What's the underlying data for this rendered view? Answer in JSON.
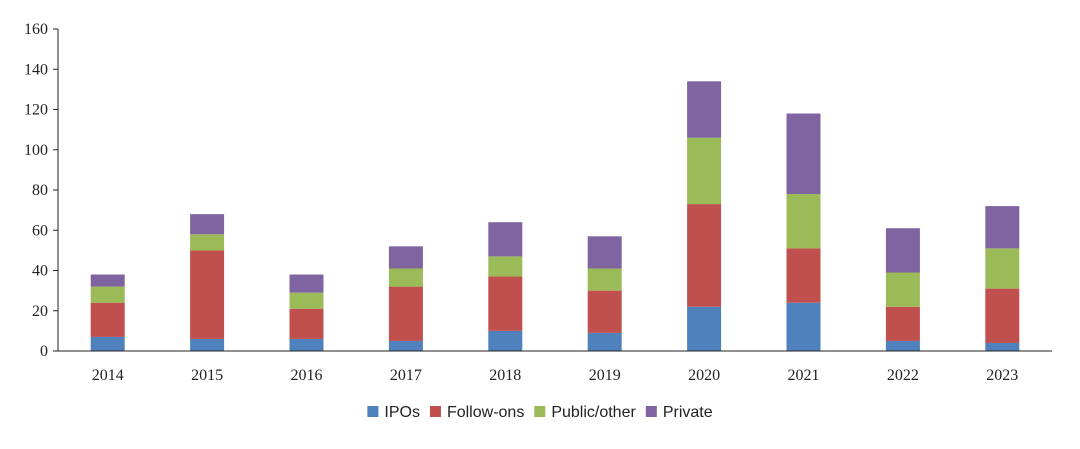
{
  "chart_data": {
    "type": "bar",
    "stacked": true,
    "title": "",
    "xlabel": "",
    "ylabel": "",
    "ylim": [
      0,
      160
    ],
    "yticks": [
      0,
      20,
      40,
      60,
      80,
      100,
      120,
      140,
      160
    ],
    "grid": false,
    "legend_position": "bottom",
    "categories": [
      "2014",
      "2015",
      "2016",
      "2017",
      "2018",
      "2019",
      "2020",
      "2021",
      "2022",
      "2023"
    ],
    "series": [
      {
        "name": "IPOs",
        "color": "#4f81bd",
        "values": [
          7,
          6,
          6,
          5,
          10,
          9,
          22,
          24,
          5,
          4
        ]
      },
      {
        "name": "Follow-ons",
        "color": "#c0504d",
        "values": [
          17,
          44,
          15,
          27,
          27,
          21,
          51,
          27,
          17,
          27
        ]
      },
      {
        "name": "Public/other",
        "color": "#9bbb59",
        "values": [
          8,
          8,
          8,
          9,
          10,
          11,
          33,
          27,
          17,
          20
        ]
      },
      {
        "name": "Private",
        "color": "#8064a2",
        "values": [
          6,
          10,
          9,
          11,
          17,
          16,
          28,
          40,
          22,
          21
        ]
      }
    ]
  }
}
